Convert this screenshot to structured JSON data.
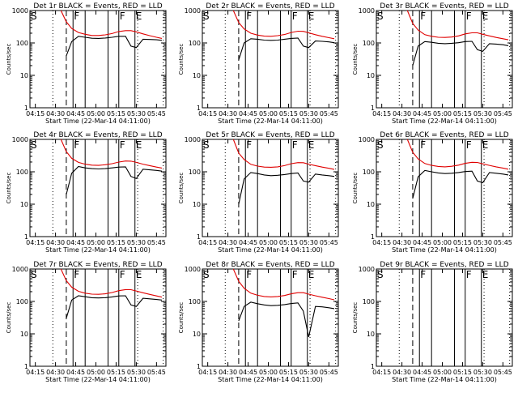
{
  "chart_data": {
    "type": "line",
    "panel_count": 9,
    "x_unit": "UT time (22-Mar-14)",
    "xlabel": "Start Time (22-Mar-14 04:11:00)",
    "ylabel": "Counts/sec",
    "x_ticks": [
      "04:15",
      "04:30",
      "04:45",
      "05:00",
      "05:15",
      "05:30",
      "05:45"
    ],
    "x_range": [
      "04:11",
      "05:52"
    ],
    "y_scale": "log",
    "y_range": [
      1,
      1000
    ],
    "y_ticks": [
      "1",
      "10",
      "100",
      "1000"
    ],
    "grid": false,
    "markers": [
      {
        "label": "S",
        "time": "04:11",
        "style": "dotted"
      },
      {
        "label": "",
        "time": "04:28",
        "style": "dotted"
      },
      {
        "label": "",
        "time": "04:38",
        "style": "dashed"
      },
      {
        "label": "F",
        "time": "04:43",
        "style": "solid"
      },
      {
        "label": "",
        "time": "04:52",
        "style": "solid"
      },
      {
        "label": "",
        "time": "05:09",
        "style": "solid"
      },
      {
        "label": "F",
        "time": "05:17",
        "style": "solid"
      },
      {
        "label": "E",
        "time": "05:29",
        "style": "solid"
      },
      {
        "label": "",
        "time": "05:31",
        "style": "dotted"
      },
      {
        "label": "",
        "time": "05:50",
        "style": "dotted"
      }
    ],
    "time_points": [
      "04:34",
      "04:38",
      "04:42",
      "04:47",
      "04:52",
      "04:57",
      "05:02",
      "05:07",
      "05:12",
      "05:17",
      "05:22",
      "05:26",
      "05:30",
      "05:35",
      "05:40",
      "05:45",
      "05:49"
    ],
    "panels": [
      {
        "title": "Det 1r BLACK = Events, RED = LLD",
        "series": [
          {
            "name": "Events",
            "color": "#000000",
            "values": [
              null,
              40,
              110,
              160,
              150,
              140,
              138,
              142,
              150,
              160,
              160,
              80,
              72,
              130,
              128,
              125,
              120
            ]
          },
          {
            "name": "LLD",
            "color": "#e00000",
            "values": [
              1000,
              450,
              280,
              210,
              185,
              170,
              170,
              178,
              195,
              225,
              240,
              240,
              220,
              190,
              168,
              150,
              138
            ]
          }
        ]
      },
      {
        "title": "Det 2r BLACK = Events, RED = LLD",
        "series": [
          {
            "name": "Events",
            "color": "#000000",
            "values": [
              null,
              30,
              100,
              135,
              130,
              122,
              120,
              122,
              130,
              138,
              142,
              80,
              72,
              115,
              112,
              108,
              102
            ]
          },
          {
            "name": "LLD",
            "color": "#e00000",
            "values": [
              1000,
              430,
              270,
              200,
              175,
              162,
              160,
              168,
              182,
              210,
              230,
              228,
              205,
              180,
              160,
              145,
              135
            ]
          }
        ]
      },
      {
        "title": "Det 3r BLACK = Events, RED = LLD",
        "series": [
          {
            "name": "Events",
            "color": "#000000",
            "values": [
              null,
              20,
              80,
              110,
              105,
              98,
              95,
              98,
              102,
              110,
              112,
              62,
              55,
              95,
              92,
              88,
              82
            ]
          },
          {
            "name": "LLD",
            "color": "#e00000",
            "values": [
              1000,
              400,
              250,
              180,
              160,
              150,
              148,
              152,
              165,
              190,
              205,
              205,
              185,
              165,
              148,
              135,
              125
            ]
          }
        ]
      },
      {
        "title": "Det 4r BLACK = Events, RED = LLD",
        "series": [
          {
            "name": "Events",
            "color": "#000000",
            "values": [
              null,
              20,
              90,
              145,
              132,
              125,
              122,
              125,
              132,
              140,
              142,
              72,
              62,
              120,
              115,
              110,
              105
            ]
          },
          {
            "name": "LLD",
            "color": "#e00000",
            "values": [
              1000,
              420,
              260,
              195,
              172,
              160,
              158,
              165,
              178,
              200,
              215,
              212,
              195,
              172,
              155,
              140,
              130
            ]
          }
        ]
      },
      {
        "title": "Det 5r BLACK = Events, RED = LLD",
        "series": [
          {
            "name": "Events",
            "color": "#000000",
            "values": [
              null,
              10,
              60,
              95,
              88,
              80,
              76,
              78,
              82,
              88,
              92,
              52,
              48,
              85,
              80,
              76,
              72
            ]
          },
          {
            "name": "LLD",
            "color": "#e00000",
            "values": [
              1000,
              380,
              240,
              170,
              150,
              140,
              138,
              142,
              155,
              178,
              192,
              190,
              172,
              155,
              140,
              128,
              118
            ]
          }
        ]
      },
      {
        "title": "Det 6r BLACK = Events, RED = LLD",
        "series": [
          {
            "name": "Events",
            "color": "#000000",
            "values": [
              null,
              15,
              70,
              110,
              100,
              92,
              88,
              90,
              95,
              102,
              105,
              52,
              46,
              95,
              90,
              85,
              80
            ]
          },
          {
            "name": "LLD",
            "color": "#e00000",
            "values": [
              1000,
              400,
              250,
              180,
              158,
              146,
              142,
              148,
              160,
              182,
              196,
              194,
              176,
              158,
              142,
              130,
              120
            ]
          }
        ]
      },
      {
        "title": "Det 7r BLACK = Events, RED = LLD",
        "series": [
          {
            "name": "Events",
            "color": "#000000",
            "values": [
              null,
              30,
              110,
              150,
              140,
              130,
              128,
              130,
              138,
              148,
              150,
              78,
              70,
              125,
              120,
              115,
              110
            ]
          },
          {
            "name": "LLD",
            "color": "#e00000",
            "values": [
              1000,
              440,
              275,
              205,
              180,
              168,
              166,
              172,
              188,
              215,
              232,
              230,
              210,
              185,
              165,
              148,
              136
            ]
          }
        ]
      },
      {
        "title": "Det 8r BLACK = Events, RED = LLD",
        "series": [
          {
            "name": "Events",
            "color": "#000000",
            "values": [
              null,
              25,
              70,
              95,
              85,
              78,
              74,
              76,
              80,
              86,
              90,
              50,
              8,
              70,
              68,
              64,
              60
            ]
          },
          {
            "name": "LLD",
            "color": "#e00000",
            "values": [
              1000,
              420,
              255,
              180,
              155,
              142,
              138,
              142,
              152,
              172,
              186,
              186,
              168,
              150,
              135,
              122,
              112
            ]
          }
        ]
      },
      {
        "title": "Det 9r BLACK = Events, RED = LLD",
        "series": []
      }
    ]
  }
}
